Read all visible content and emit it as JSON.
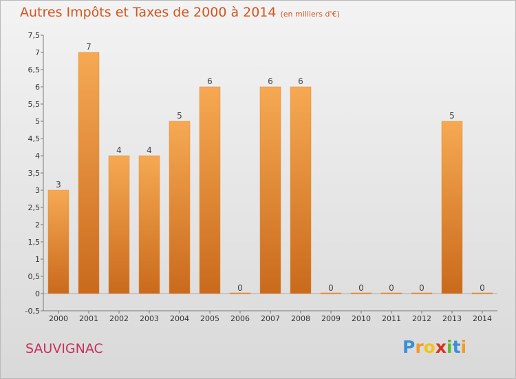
{
  "title": "Autres Impôts et Taxes de 2000 à 2014",
  "unit": "(en milliers d'€)",
  "commune": "SAUVIGNAC",
  "logo": {
    "letters": [
      "P",
      "r",
      "o",
      "x",
      "i",
      "t",
      "i"
    ],
    "colors": [
      "#3a8fd8",
      "#f29a26",
      "#f2c31a",
      "#d9321f",
      "#5bb935",
      "#3a8fd8",
      "#f29a26"
    ]
  },
  "colors": {
    "bar_light": "#f6a952",
    "bar_dark": "#c96a1c",
    "title": "#d2541f",
    "commune": "#c8315c"
  },
  "chart_data": {
    "type": "bar",
    "title": "Autres Impôts et Taxes de 2000 à 2014",
    "subtitle": "(en milliers d'€)",
    "categories": [
      "2000",
      "2001",
      "2002",
      "2003",
      "2004",
      "2005",
      "2006",
      "2007",
      "2008",
      "2009",
      "2010",
      "2011",
      "2012",
      "2013",
      "2014"
    ],
    "values": [
      3,
      7,
      4,
      4,
      5,
      6,
      0,
      6,
      6,
      0,
      0,
      0,
      0,
      5,
      0
    ],
    "ylim": [
      -0.5,
      7.5
    ],
    "yticks": [
      "-0,5",
      "0",
      "0,5",
      "1",
      "1,5",
      "2",
      "2,5",
      "3",
      "3,5",
      "4",
      "4,5",
      "5",
      "5,5",
      "6",
      "6,5",
      "7",
      "7,5"
    ],
    "ytick_values": [
      -0.5,
      0,
      0.5,
      1,
      1.5,
      2,
      2.5,
      3,
      3.5,
      4,
      4.5,
      5,
      5.5,
      6,
      6.5,
      7,
      7.5
    ],
    "grid": false,
    "legend": "none"
  }
}
